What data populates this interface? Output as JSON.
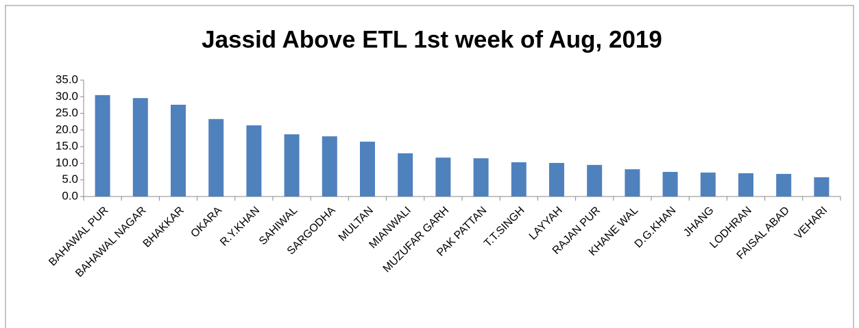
{
  "chart_data": {
    "type": "bar",
    "title": "Jassid Above ETL  1st week of Aug, 2019",
    "categories": [
      "BAHAWAL PUR",
      "BAHAWAL NAGAR",
      "BHAKKAR",
      "OKARA",
      "R.Y.KHAN",
      "SAHIWAL",
      "SARGODHA",
      "MULTAN",
      "MIANWALI",
      "MUZUFAR GARH",
      "PAK PATTAN",
      "T.T.SINGH",
      "LAYYAH",
      "RAJAN PUR",
      "KHANE WAL",
      "D.G.KHAN",
      "JHANG",
      "LODHRAN",
      "FAISAL ABAD",
      "VEHARI"
    ],
    "values": [
      30.5,
      29.6,
      27.6,
      23.3,
      21.4,
      18.7,
      18.1,
      16.5,
      13.0,
      11.7,
      11.5,
      10.3,
      10.1,
      9.5,
      8.2,
      7.4,
      7.2,
      7.0,
      6.8,
      5.8
    ],
    "color": "#4f81bd",
    "ylim": [
      0,
      35
    ],
    "yticks": [
      {
        "value": 0,
        "label": "0.0"
      },
      {
        "value": 5,
        "label": "5.0"
      },
      {
        "value": 10,
        "label": "10.0"
      },
      {
        "value": 15,
        "label": "15.0"
      },
      {
        "value": 20,
        "label": "20.0"
      },
      {
        "value": 25,
        "label": "25.0"
      },
      {
        "value": 30,
        "label": "30.0"
      },
      {
        "value": 35,
        "label": "35.0"
      }
    ],
    "grid": false
  }
}
